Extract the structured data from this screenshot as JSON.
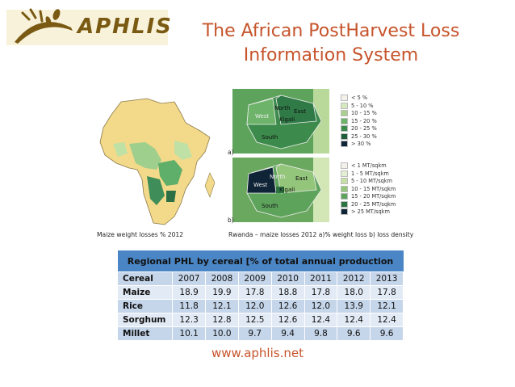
{
  "logo": {
    "text": "APHLIS"
  },
  "title": {
    "line1": "The African PostHarvest Loss",
    "line2": "Information System"
  },
  "africa_map": {
    "caption": "Maize weight losses % 2012"
  },
  "rwanda": {
    "caption": "Rwanda – maize losses 2012 a)% weight loss b) loss density",
    "map_a_label": "a)",
    "map_b_label": "b)",
    "regions": {
      "north": "North",
      "east": "East",
      "west": "West",
      "south": "South",
      "kigali": "Kigali"
    },
    "legend_a": [
      {
        "label": "< 5 %",
        "color": "#f3f1ea"
      },
      {
        "label": "5 - 10 %",
        "color": "#d6e8bf"
      },
      {
        "label": "10 - 15 %",
        "color": "#a8d190"
      },
      {
        "label": "15 - 20 %",
        "color": "#6db46a"
      },
      {
        "label": "20 - 25 %",
        "color": "#3c8b4c"
      },
      {
        "label": "25 - 30 %",
        "color": "#205d3a"
      },
      {
        "label": "> 30 %",
        "color": "#0f2437"
      }
    ],
    "legend_b": [
      {
        "label": "< 1 MT/sqkm",
        "color": "#f3f1ea"
      },
      {
        "label": "1 - 5 MT/sqkm",
        "color": "#e4eed2"
      },
      {
        "label": "5 - 10 MT/sqkm",
        "color": "#c6e0a6"
      },
      {
        "label": "10 - 15 MT/sqkm",
        "color": "#93c57b"
      },
      {
        "label": "15 - 20 MT/sqkm",
        "color": "#5ea35c"
      },
      {
        "label": "20 - 25 MT/sqkm",
        "color": "#2d7342"
      },
      {
        "label": "> 25 MT/sqkm",
        "color": "#0f2437"
      }
    ]
  },
  "table": {
    "title": "Regional PHL by cereal [% of total annual production",
    "headers": [
      "Cereal",
      "2007",
      "2008",
      "2009",
      "2010",
      "2011",
      "2012",
      "2013"
    ],
    "rows": [
      [
        "Maize",
        "18.9",
        "19.9",
        "17.8",
        "18.8",
        "17.8",
        "18.0",
        "17.8"
      ],
      [
        "Rice",
        "11.8",
        "12.1",
        "12.0",
        "12.6",
        "12.0",
        "13.9",
        "12.1"
      ],
      [
        "Sorghum",
        "12.3",
        "12.8",
        "12.5",
        "12.6",
        "12.4",
        "12.4",
        "12.4"
      ],
      [
        "Millet",
        "10.1",
        "10.0",
        "9.7",
        "9.4",
        "9.8",
        "9.6",
        "9.6"
      ]
    ]
  },
  "footer": {
    "url": "www.aphlis.net"
  }
}
